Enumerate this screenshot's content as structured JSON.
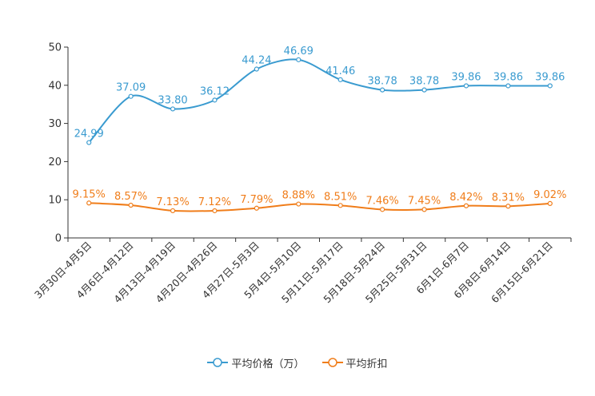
{
  "chart_data": {
    "type": "line",
    "categories": [
      "3月30日-4月5日",
      "4月6日-4月12日",
      "4月13日-4月19日",
      "4月20日-4月26日",
      "4月27日-5月3日",
      "5月4日-5月10日",
      "5月11日-5月17日",
      "5月18日-5月24日",
      "5月25日-5月31日",
      "6月1日-6月7日",
      "6月8日-6月14日",
      "6月15日-6月21日"
    ],
    "ylim": [
      0,
      50
    ],
    "yticks": [
      "0",
      "10",
      "20",
      "30",
      "40",
      "50"
    ],
    "series": [
      {
        "name": "平均价格（万）",
        "color": "#3a9bd0",
        "values": [
          24.99,
          37.09,
          33.8,
          36.12,
          44.24,
          46.69,
          41.46,
          38.78,
          38.78,
          39.86,
          39.86,
          39.86
        ],
        "labels": [
          "24.99",
          "37.09",
          "33.80",
          "36.12",
          "44.24",
          "46.69",
          "41.46",
          "38.78",
          "38.78",
          "39.86",
          "39.86",
          "39.86"
        ]
      },
      {
        "name": "平均折扣",
        "color": "#f07d1a",
        "values": [
          9.15,
          8.57,
          7.13,
          7.12,
          7.79,
          8.88,
          8.51,
          7.46,
          7.45,
          8.42,
          8.31,
          9.02
        ],
        "labels": [
          "9.15%",
          "8.57%",
          "7.13%",
          "7.12%",
          "7.79%",
          "8.88%",
          "8.51%",
          "7.46%",
          "7.45%",
          "8.42%",
          "8.31%",
          "9.02%"
        ]
      }
    ],
    "legend": "bottom-center"
  }
}
